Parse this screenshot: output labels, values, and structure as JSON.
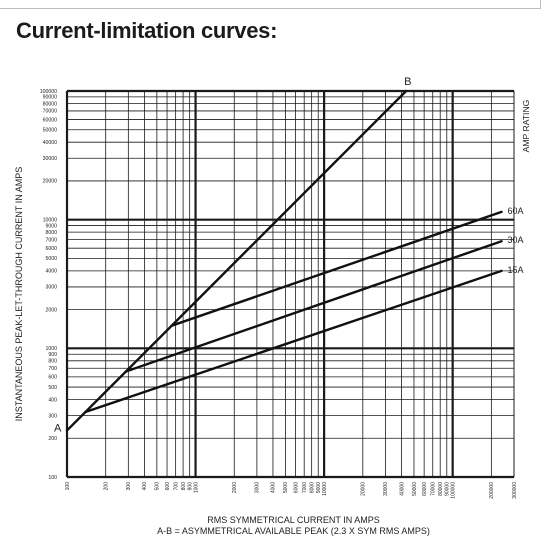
{
  "page": {
    "title": "Current-limitation curves:"
  },
  "chart_data": {
    "type": "line",
    "title": "",
    "xlabel": "RMS SYMMETRICAL CURRENT IN AMPS",
    "xlabel2": "A-B = ASYMMETRICAL AVAILABLE PEAK (2.3 X SYM RMS AMPS)",
    "ylabel": "INSTANTANEOUS PEAK-LET-THROUGH CURRENT IN AMPS",
    "right_label": "AMP RATING",
    "x_scale": "log",
    "y_scale": "log",
    "xlim": [
      100,
      300000
    ],
    "ylim": [
      100,
      100000
    ],
    "grid": true,
    "x_tick_labels": [
      "100",
      "200",
      "300",
      "400",
      "500",
      "600",
      "700",
      "800",
      "900",
      "1000",
      "2000",
      "3000",
      "4000",
      "5000",
      "6000",
      "7000",
      "8000",
      "9000",
      "10000",
      "20000",
      "30000",
      "40000",
      "50000",
      "60000",
      "70000",
      "80000",
      "90000",
      "100000",
      "200000",
      "300000"
    ],
    "y_tick_labels": [
      "100",
      "200",
      "300",
      "400",
      "500",
      "600",
      "700",
      "800",
      "900",
      "1000",
      "2000",
      "3000",
      "4000",
      "5000",
      "6000",
      "7000",
      "8000",
      "9000",
      "10000",
      "20000",
      "30000",
      "40000",
      "50000",
      "60000",
      "70000",
      "80000",
      "90000",
      "100000"
    ],
    "series": [
      {
        "name": "A-B",
        "start_label": "A",
        "end_label": "B",
        "x": [
          100,
          43478
        ],
        "y": [
          230,
          100000
        ]
      },
      {
        "name": "60A",
        "x": [
          652,
          240000
        ],
        "y": [
          1500,
          11500
        ]
      },
      {
        "name": "30A",
        "x": [
          287,
          240000
        ],
        "y": [
          660,
          6800
        ]
      },
      {
        "name": "15A",
        "x": [
          139,
          240000
        ],
        "y": [
          320,
          4000
        ]
      }
    ]
  }
}
